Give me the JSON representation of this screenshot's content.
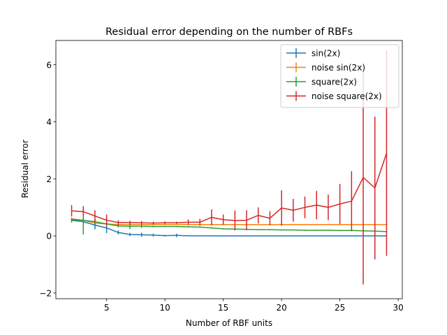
{
  "chart_data": {
    "type": "line",
    "title": "Residual error depending on the number of RBFs",
    "xlabel": "Number of RBF units",
    "ylabel": "Residual error",
    "xlim": [
      0.65,
      30.35
    ],
    "ylim": [
      -2.2,
      6.85
    ],
    "xticks": [
      5,
      10,
      15,
      20,
      25,
      30
    ],
    "yticks": [
      -2,
      0,
      2,
      4,
      6
    ],
    "grid": false,
    "legend_position": "top-right",
    "error_bars": true,
    "x": [
      2,
      3,
      4,
      5,
      6,
      7,
      8,
      9,
      10,
      11,
      12,
      13,
      14,
      15,
      16,
      17,
      18,
      19,
      20,
      21,
      22,
      23,
      24,
      25,
      26,
      27,
      28,
      29
    ],
    "series": [
      {
        "name": "sin(2x)",
        "color": "#1f77b4",
        "values": [
          0.55,
          0.5,
          0.38,
          0.28,
          0.12,
          0.05,
          0.04,
          0.03,
          0.01,
          0.02,
          0.005,
          0.003,
          0.003,
          0.002,
          0.002,
          0.002,
          0.002,
          0.002,
          0.002,
          0.002,
          0.002,
          0.002,
          0.002,
          0.002,
          0.002,
          0.002,
          0.002,
          0.002
        ],
        "errors": [
          0.08,
          0.1,
          0.15,
          0.18,
          0.07,
          0.06,
          0.07,
          0.05,
          0.03,
          0.06,
          0.01,
          0.01,
          0.01,
          0.01,
          0.01,
          0.01,
          0.01,
          0.01,
          0.01,
          0.01,
          0.01,
          0.01,
          0.01,
          0.01,
          0.01,
          0.01,
          0.01,
          0.01
        ]
      },
      {
        "name": "noise sin(2x)",
        "color": "#ff7f0e",
        "values": [
          0.6,
          0.55,
          0.45,
          0.42,
          0.4,
          0.4,
          0.4,
          0.4,
          0.4,
          0.4,
          0.4,
          0.4,
          0.4,
          0.4,
          0.4,
          0.4,
          0.4,
          0.4,
          0.4,
          0.4,
          0.4,
          0.4,
          0.4,
          0.4,
          0.4,
          0.4,
          0.4,
          0.4
        ],
        "errors": [
          0.04,
          0.04,
          0.03,
          0.03,
          0.02,
          0.02,
          0.02,
          0.02,
          0.02,
          0.02,
          0.02,
          0.02,
          0.02,
          0.02,
          0.02,
          0.02,
          0.02,
          0.02,
          0.02,
          0.02,
          0.02,
          0.02,
          0.02,
          0.02,
          0.02,
          0.02,
          0.02,
          0.02
        ]
      },
      {
        "name": "square(2x)",
        "color": "#2ca02c",
        "values": [
          0.57,
          0.55,
          0.5,
          0.42,
          0.35,
          0.34,
          0.34,
          0.33,
          0.33,
          0.33,
          0.32,
          0.31,
          0.28,
          0.25,
          0.24,
          0.23,
          0.22,
          0.22,
          0.21,
          0.21,
          0.2,
          0.2,
          0.2,
          0.19,
          0.19,
          0.18,
          0.17,
          0.15
        ],
        "errors": [
          0.05,
          0.5,
          0.1,
          0.06,
          0.05,
          0.1,
          0.06,
          0.03,
          0.02,
          0.02,
          0.02,
          0.02,
          0.02,
          0.02,
          0.02,
          0.02,
          0.02,
          0.02,
          0.02,
          0.02,
          0.02,
          0.02,
          0.02,
          0.02,
          0.02,
          0.02,
          0.02,
          0.02
        ]
      },
      {
        "name": "noise square(2x)",
        "color": "#d62728",
        "values": [
          0.88,
          0.85,
          0.7,
          0.55,
          0.47,
          0.47,
          0.46,
          0.45,
          0.46,
          0.46,
          0.48,
          0.48,
          0.65,
          0.57,
          0.54,
          0.55,
          0.72,
          0.62,
          0.98,
          0.9,
          1.0,
          1.08,
          1.0,
          1.12,
          1.22,
          2.05,
          1.68,
          2.9
        ],
        "errors": [
          0.2,
          0.15,
          0.2,
          0.2,
          0.08,
          0.06,
          0.06,
          0.05,
          0.05,
          0.04,
          0.1,
          0.12,
          0.28,
          0.18,
          0.35,
          0.35,
          0.28,
          0.25,
          0.62,
          0.4,
          0.38,
          0.5,
          0.45,
          0.7,
          1.05,
          3.75,
          2.5,
          3.6
        ]
      }
    ]
  }
}
